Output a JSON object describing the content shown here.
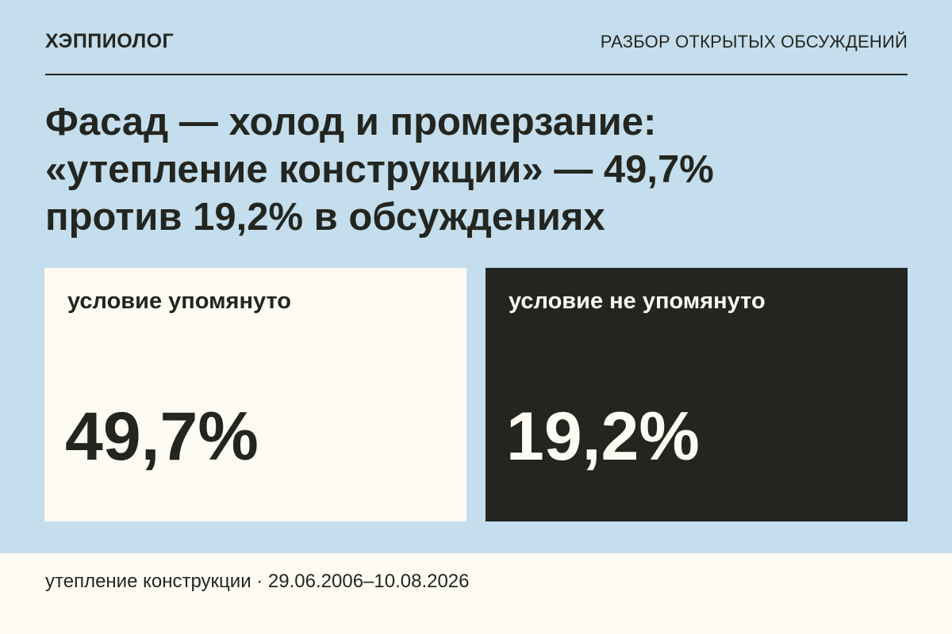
{
  "header": {
    "brand": "ХЭППИОЛОГ",
    "section": "РАЗБОР ОТКРЫТЫХ ОБСУЖДЕНИЙ"
  },
  "headline": {
    "lines": [
      "Фасад — холод и промерзание:",
      "«утепление конструкции» — 49,7%",
      "против 19,2% в обсуждениях"
    ]
  },
  "cards": [
    {
      "label": "условие упомянуто",
      "value": "49,7%",
      "numeric_value": 49.7
    },
    {
      "label": "условие не упомянуто",
      "value": "19,2%",
      "numeric_value": 19.2
    }
  ],
  "footer": {
    "caption": "утепление конструкции · 29.06.2006–10.08.2026"
  },
  "colors": {
    "background": "#c5deed",
    "dark": "#232620",
    "light": "#fefbf3"
  }
}
